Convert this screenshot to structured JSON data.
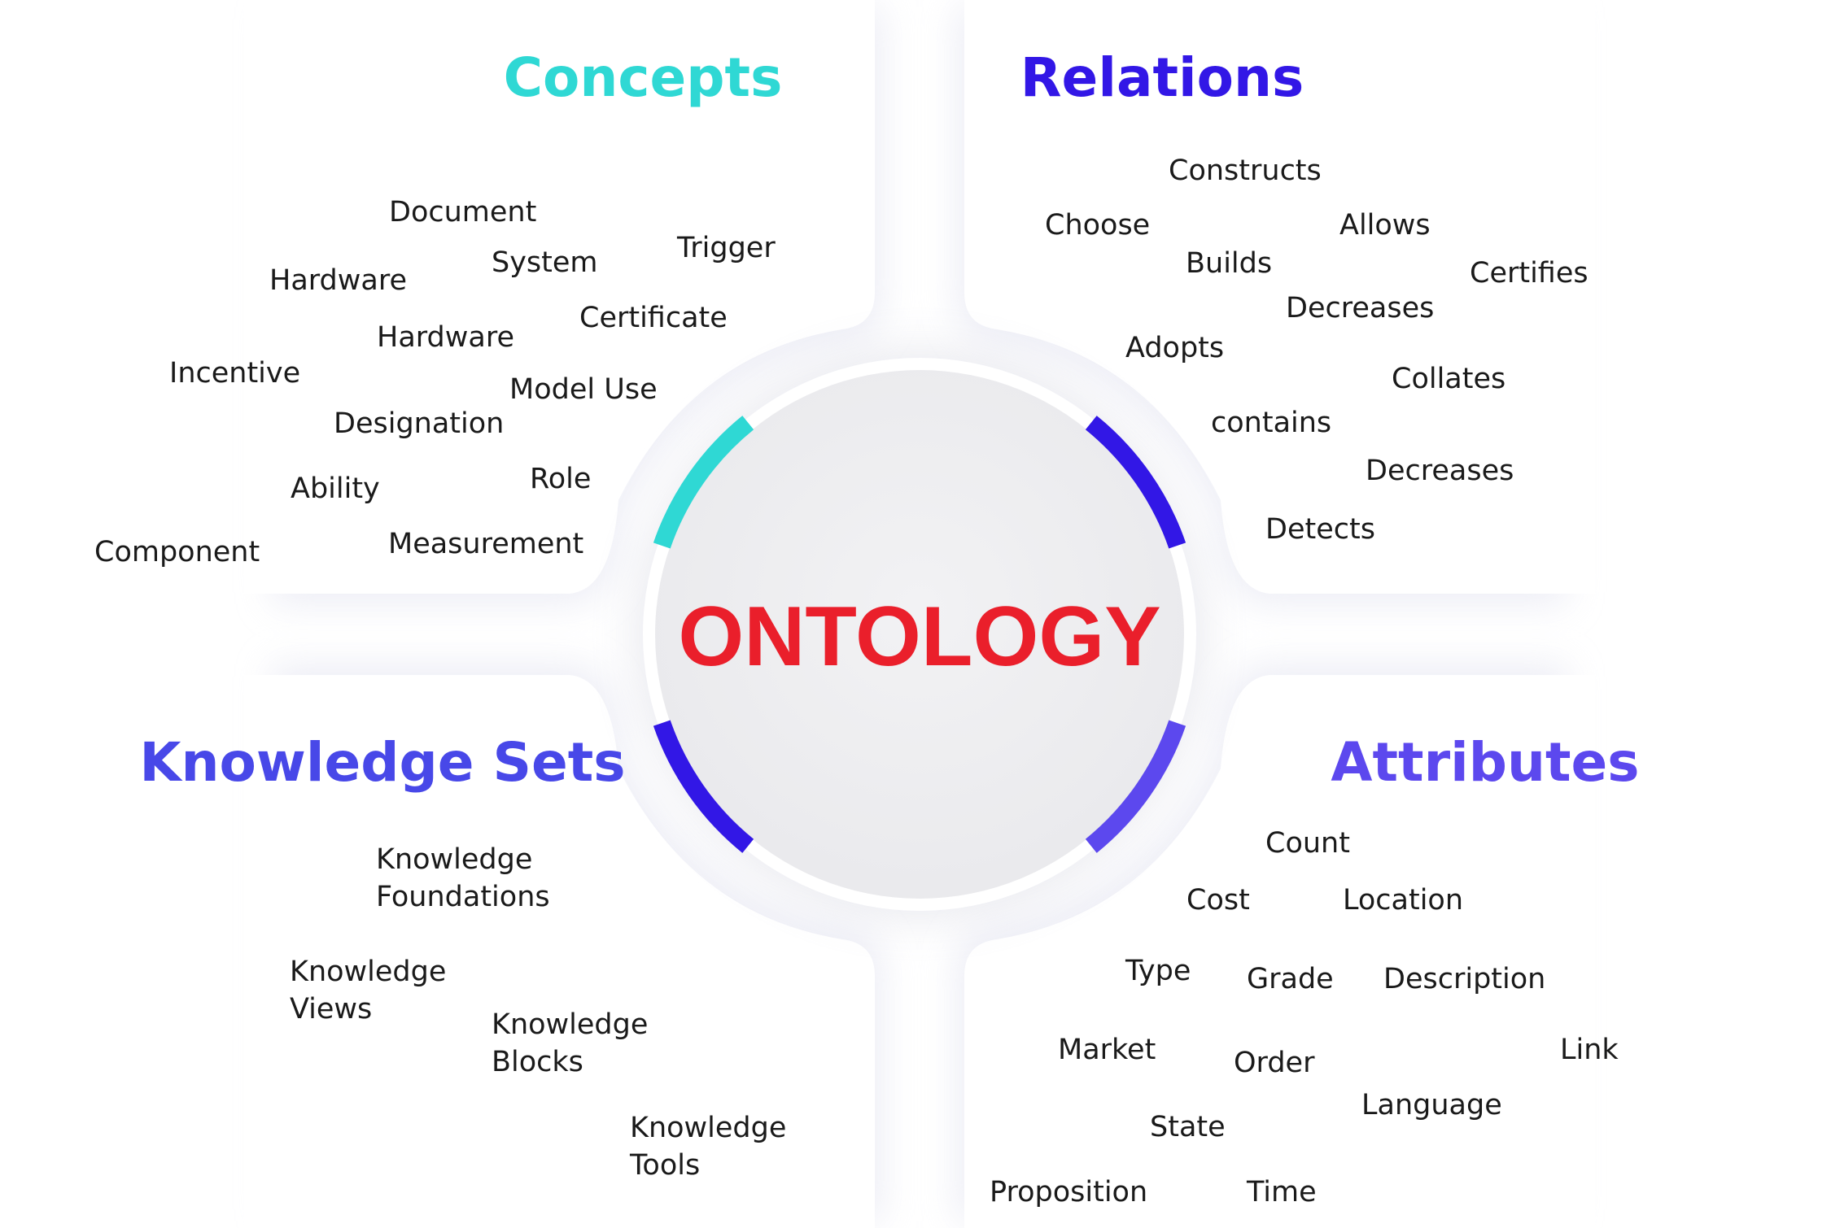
{
  "center": {
    "label": "ONTOLOGY",
    "color": "#ea1f2b"
  },
  "colors": {
    "concepts": "#2fd8d4",
    "relations": "#3217e6",
    "knowledge_sets": "#4848e8",
    "attributes": "#5c48ee",
    "term_text": "#1a1a1a"
  },
  "quadrants": {
    "concepts": {
      "title": "Concepts",
      "terms": [
        [
          "Document"
        ],
        [
          "Trigger"
        ],
        [
          "System"
        ],
        [
          "Hardware"
        ],
        [
          "Certificate"
        ],
        [
          "Hardware"
        ],
        [
          "Incentive"
        ],
        [
          "Model Use"
        ],
        [
          "Designation"
        ],
        [
          "Role"
        ],
        [
          "Ability"
        ],
        [
          "Measurement"
        ],
        [
          "Component"
        ]
      ]
    },
    "relations": {
      "title": "Relations",
      "terms": [
        [
          "Constructs"
        ],
        [
          "Choose"
        ],
        [
          "Allows"
        ],
        [
          "Builds"
        ],
        [
          "Certifies"
        ],
        [
          "Decreases"
        ],
        [
          "Adopts"
        ],
        [
          "Collates"
        ],
        [
          "contains"
        ],
        [
          "Decreases"
        ],
        [
          "Detects"
        ]
      ]
    },
    "knowledge_sets": {
      "title": "Knowledge Sets",
      "terms": [
        [
          "Knowledge",
          "Foundations"
        ],
        [
          "Knowledge",
          "Views"
        ],
        [
          "Knowledge",
          "Blocks"
        ],
        [
          "Knowledge",
          "Tools"
        ]
      ]
    },
    "attributes": {
      "title": "Attributes",
      "terms": [
        [
          "Count"
        ],
        [
          "Cost"
        ],
        [
          "Location"
        ],
        [
          "Type"
        ],
        [
          "Grade"
        ],
        [
          "Description"
        ],
        [
          "Market"
        ],
        [
          "Link"
        ],
        [
          "Order"
        ],
        [
          "Language"
        ],
        [
          "State"
        ],
        [
          "Proposition"
        ],
        [
          "Time"
        ]
      ]
    }
  }
}
